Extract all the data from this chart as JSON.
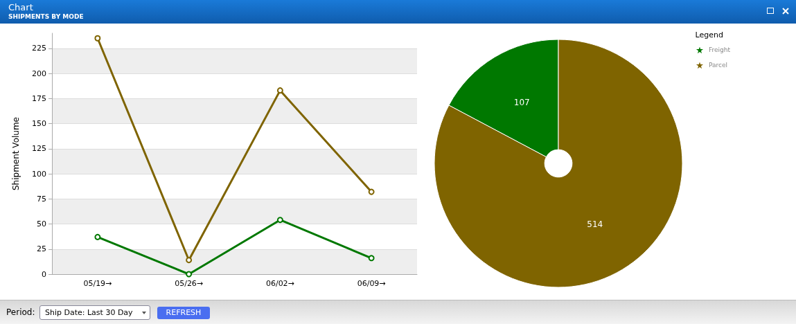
{
  "chart_data": [
    {
      "type": "line",
      "title": "Chart",
      "subtitle": "SHIPMENTS BY MODE",
      "ylabel": "Shipment Volume",
      "categories": [
        "05/19→",
        "05/26→",
        "06/02→",
        "06/09→"
      ],
      "series": [
        {
          "color": "#7f6400",
          "values": [
            235,
            14,
            183,
            82
          ]
        },
        {
          "color": "#007800",
          "values": [
            37,
            0,
            54,
            16
          ]
        }
      ],
      "ylim": [
        0,
        240
      ],
      "yticks": [
        0,
        25,
        50,
        75,
        100,
        125,
        150,
        175,
        200,
        225
      ],
      "grid": "y",
      "marker": "circle",
      "line_style": "solid",
      "legend": false,
      "annotations": [
        "Period:",
        "Ship Date: Last 30 Day",
        "REFRESH"
      ]
    },
    {
      "type": "pie",
      "categories": [
        "Freight",
        "Parcel"
      ],
      "values": [
        107,
        514
      ],
      "colors": [
        "#007800",
        "#7f6400"
      ],
      "data_labels": true,
      "legend": "top right",
      "legend_title": "Legend",
      "marker": "star"
    }
  ]
}
